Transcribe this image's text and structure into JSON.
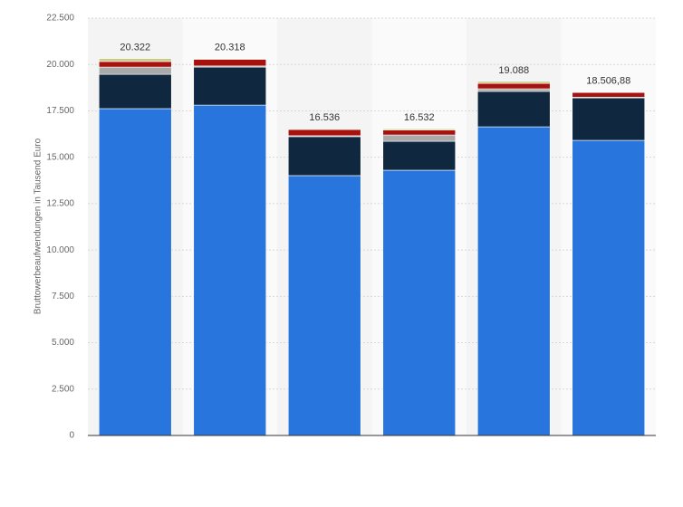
{
  "chart_data": {
    "type": "stacked-bar",
    "y_label": "Bruttowerbeaufwendungen in Tausend Euro",
    "categories": [
      null,
      null,
      null,
      null,
      null,
      null
    ],
    "series": [
      {
        "color": "#2876dd",
        "values": [
          17620,
          17810,
          14010,
          14300,
          16640,
          15910
        ]
      },
      {
        "color": "#10283f",
        "values": [
          1850,
          2050,
          2100,
          1560,
          1910,
          2290
        ]
      },
      {
        "color": "#a9a9a9",
        "values": [
          390,
          60,
          50,
          340,
          140,
          40
        ]
      },
      {
        "color": "#a8120e",
        "values": [
          300,
          358,
          336,
          262,
          290,
          250
        ]
      },
      {
        "color": "#c9c98a",
        "values": [
          162,
          40,
          40,
          70,
          108,
          16.88
        ]
      }
    ],
    "totals": {
      "values": [
        20322,
        20318,
        16536,
        16532,
        19088,
        18506.88
      ],
      "value_labels": [
        "20.322",
        "20.318",
        "16.536",
        "16.532",
        "19.088",
        "18.506,88"
      ]
    },
    "ylim": [
      0,
      22500
    ],
    "yticks": [
      0,
      {
        "value": 2500,
        "label": "2.500"
      },
      {
        "value": 5000,
        "label": "5.000"
      },
      {
        "value": 7500,
        "label": "7.500"
      },
      {
        "value": 10000,
        "label": "10.000"
      },
      {
        "value": 12500,
        "label": "12.500"
      },
      {
        "value": 15000,
        "label": "15.000"
      },
      {
        "value": 17500,
        "label": "17.500"
      },
      {
        "value": 20000,
        "label": "20.000"
      },
      {
        "value": 22500,
        "label": "22.500"
      }
    ],
    "grid": true
  }
}
